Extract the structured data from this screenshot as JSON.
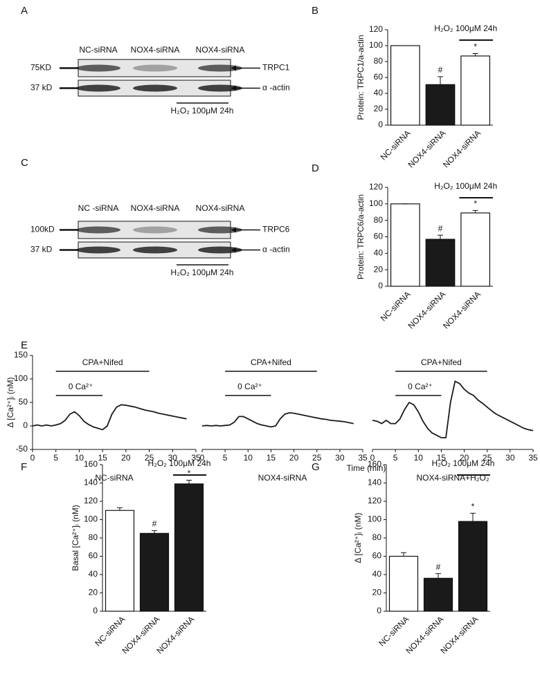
{
  "blots": [
    {
      "letter": "A",
      "lanes": [
        "NC-siRNA",
        "NOX4-siRNA",
        "NOX4-siRNA"
      ],
      "markers": [
        "75KD",
        "37 kD"
      ],
      "targets": [
        "TRPC1",
        "α -actin"
      ],
      "treatment": "H₂O₂ 100μM 24h"
    },
    {
      "letter": "C",
      "lanes": [
        "NC -siRNA",
        "NOX4-siRNA",
        "NOX4-siRNA"
      ],
      "markers": [
        "100kD",
        "37 kD"
      ],
      "targets": [
        "TRPC6",
        "α -actin"
      ],
      "treatment": "H₂O₂ 100μM 24h"
    }
  ],
  "chart_data": [
    {
      "type": "bar",
      "letter": "B",
      "y_label": "Protein: TRPC1/a-actin",
      "categories": [
        "NC-siRNA",
        "NOX4-siRNA",
        "NOX4-siRNA"
      ],
      "values": [
        100,
        51,
        87
      ],
      "errors": [
        0,
        10,
        3
      ],
      "colors": [
        "#ffffff",
        "#1a1a1a",
        "#ffffff"
      ],
      "bar_marks": [
        null,
        "#",
        "*"
      ],
      "bracket": [
        false,
        false,
        true
      ],
      "bracket_label": "H₂O₂ 100μM 24h",
      "ylim": [
        0,
        120
      ],
      "yticks": [
        0,
        20,
        40,
        60,
        80,
        100,
        120
      ]
    },
    {
      "type": "bar",
      "letter": "D",
      "y_label": "Protein: TRPC6/a-actin",
      "categories": [
        "NC-siRNA",
        "NOX4-siRNA",
        "NOX4-siRNA"
      ],
      "values": [
        100,
        57,
        89
      ],
      "errors": [
        0,
        5,
        3
      ],
      "colors": [
        "#ffffff",
        "#1a1a1a",
        "#ffffff"
      ],
      "bar_marks": [
        null,
        "#",
        "*"
      ],
      "bracket": [
        false,
        false,
        true
      ],
      "bracket_label": "H₂O₂ 100μM 24h",
      "ylim": [
        0,
        120
      ],
      "yticks": [
        0,
        20,
        40,
        60,
        80,
        100,
        120
      ]
    },
    {
      "type": "line",
      "letter": "E",
      "y_label": "Δ [Ca²⁺]ᵢ (nM)",
      "subtitle": "NC-siRNA",
      "color": "#1a1a1a",
      "x": [
        0,
        1,
        2,
        3,
        4,
        5,
        6,
        7,
        8,
        9,
        10,
        11,
        12,
        13,
        14,
        15,
        16,
        17,
        18,
        19,
        20,
        21,
        22,
        23,
        24,
        25,
        26,
        27,
        28,
        29,
        30,
        31,
        32,
        33
      ],
      "values": [
        0,
        2,
        0,
        2,
        0,
        2,
        5,
        12,
        25,
        30,
        22,
        10,
        3,
        -2,
        -5,
        -8,
        0,
        25,
        40,
        45,
        44,
        42,
        40,
        37,
        34,
        32,
        30,
        27,
        25,
        23,
        21,
        19,
        17,
        15
      ],
      "annotations": [
        {
          "text": "CPA+Nifed",
          "span": [
            5,
            25
          ]
        },
        {
          "text": "0 Ca²⁺",
          "span": [
            5,
            15
          ]
        }
      ],
      "xlim": [
        0,
        35
      ],
      "xticks": [
        0,
        5,
        10,
        15,
        20,
        25,
        30,
        35
      ],
      "ylim": [
        -50,
        150
      ],
      "yticks": [
        -50,
        0,
        50,
        100,
        150
      ]
    },
    {
      "type": "line",
      "subtitle": "NOX4-siRNA",
      "x_label": "Time (min)",
      "color": "#1a1a1a",
      "x": [
        0,
        1,
        2,
        3,
        4,
        5,
        6,
        7,
        8,
        9,
        10,
        11,
        12,
        13,
        14,
        15,
        16,
        17,
        18,
        19,
        20,
        21,
        22,
        23,
        24,
        25,
        26,
        27,
        28,
        29,
        30,
        31,
        32,
        33
      ],
      "values": [
        0,
        1,
        0,
        1,
        0,
        1,
        2,
        8,
        20,
        20,
        15,
        10,
        5,
        2,
        0,
        -2,
        0,
        15,
        25,
        28,
        27,
        25,
        23,
        21,
        19,
        17,
        15,
        14,
        12,
        11,
        10,
        9,
        7,
        5
      ],
      "annotations": [
        {
          "text": "CPA+Nifed",
          "span": [
            5,
            25
          ]
        },
        {
          "text": "0 Ca²⁺",
          "span": [
            5,
            15
          ]
        }
      ],
      "xlim": [
        0,
        35
      ],
      "xticks": [
        0,
        5,
        10,
        15,
        20,
        25,
        30,
        35
      ],
      "ylim": [
        -50,
        150
      ]
    },
    {
      "type": "line",
      "subtitle": "NOX4-siRNA+H₂O₂",
      "color": "#1a1a1a",
      "x": [
        0,
        1,
        2,
        3,
        4,
        5,
        6,
        7,
        8,
        9,
        10,
        11,
        12,
        13,
        14,
        15,
        16,
        17,
        18,
        19,
        20,
        21,
        22,
        23,
        24,
        25,
        26,
        27,
        28,
        29,
        30,
        31,
        32,
        33,
        34,
        35
      ],
      "values": [
        12,
        10,
        5,
        12,
        5,
        5,
        15,
        35,
        50,
        45,
        30,
        10,
        -5,
        -15,
        -20,
        -25,
        -25,
        50,
        95,
        90,
        78,
        70,
        65,
        55,
        48,
        40,
        32,
        25,
        20,
        15,
        10,
        5,
        0,
        -5,
        -8,
        -10
      ],
      "annotations": [
        {
          "text": "CPA+Nifed",
          "span": [
            5,
            25
          ]
        },
        {
          "text": "0 Ca²⁺",
          "span": [
            5,
            15
          ]
        }
      ],
      "xlim": [
        0,
        35
      ],
      "xticks": [
        0,
        5,
        10,
        15,
        20,
        25,
        30,
        35
      ],
      "ylim": [
        -50,
        150
      ]
    },
    {
      "type": "bar",
      "letter": "F",
      "y_label": "Basal [Ca²⁺]ᵢ (nM)",
      "categories": [
        "NC-siRNA",
        "NOX4-siRNA",
        "NOX4-siRNA"
      ],
      "values": [
        110,
        85,
        139
      ],
      "errors": [
        3,
        3,
        4
      ],
      "colors": [
        "#ffffff",
        "#1a1a1a",
        "#1a1a1a"
      ],
      "bar_marks": [
        null,
        "#",
        "*"
      ],
      "bracket": [
        false,
        false,
        true
      ],
      "bracket_label": "H₂O₂ 100μM 24h",
      "ylim": [
        0,
        160
      ],
      "yticks": [
        0,
        20,
        40,
        60,
        80,
        100,
        120,
        140,
        160
      ]
    },
    {
      "type": "bar",
      "letter": "G",
      "y_label": "Δ [Ca²⁺]ᵢ (nM)",
      "categories": [
        "NC-siRNA",
        "NOX4-siRNA",
        "NOX4-siRNA"
      ],
      "values": [
        60,
        36,
        98
      ],
      "errors": [
        4,
        5,
        9
      ],
      "colors": [
        "#ffffff",
        "#1a1a1a",
        "#1a1a1a"
      ],
      "bar_marks": [
        null,
        "#",
        "*"
      ],
      "bracket": [
        false,
        false,
        true
      ],
      "bracket_label": "H₂O₂ 100μM 24h",
      "ylim": [
        0,
        160
      ],
      "yticks": [
        0,
        20,
        40,
        60,
        80,
        100,
        120,
        140,
        160
      ]
    }
  ]
}
